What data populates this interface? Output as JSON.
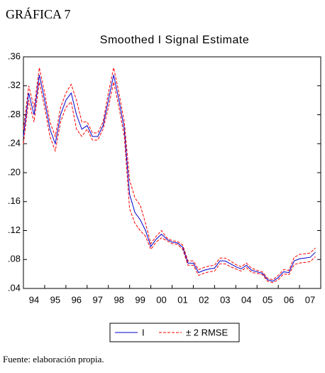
{
  "chart_data": {
    "type": "line",
    "header": "GRÁFICA 7",
    "title": "Smoothed I Signal Estimate",
    "footer": "Fuente: elaboración propia.",
    "x": [
      1994,
      1994.25,
      1994.5,
      1994.75,
      1995,
      1995.25,
      1995.5,
      1995.75,
      1996,
      1996.25,
      1996.5,
      1996.75,
      1997,
      1997.25,
      1997.5,
      1997.75,
      1998,
      1998.25,
      1998.5,
      1998.75,
      1999,
      1999.25,
      1999.5,
      1999.75,
      2000,
      2000.25,
      2000.5,
      2000.75,
      2001,
      2001.25,
      2001.5,
      2001.75,
      2002,
      2002.25,
      2002.5,
      2002.75,
      2003,
      2003.25,
      2003.5,
      2003.75,
      2004,
      2004.25,
      2004.5,
      2004.75,
      2005,
      2005.25,
      2005.5,
      2005.75,
      2006,
      2006.25,
      2006.5,
      2006.75,
      2007,
      2007.25,
      2007.5,
      2007.75
    ],
    "series": [
      {
        "name": "I",
        "color": "#0000cc",
        "values": [
          0.25,
          0.31,
          0.28,
          0.335,
          0.3,
          0.26,
          0.24,
          0.28,
          0.3,
          0.31,
          0.28,
          0.26,
          0.265,
          0.25,
          0.25,
          0.265,
          0.3,
          0.335,
          0.3,
          0.26,
          0.17,
          0.145,
          0.135,
          0.12,
          0.098,
          0.108,
          0.115,
          0.108,
          0.104,
          0.103,
          0.097,
          0.075,
          0.075,
          0.062,
          0.065,
          0.067,
          0.068,
          0.078,
          0.078,
          0.074,
          0.07,
          0.067,
          0.072,
          0.065,
          0.063,
          0.061,
          0.052,
          0.05,
          0.055,
          0.063,
          0.062,
          0.078,
          0.081,
          0.082,
          0.083,
          0.09
        ]
      },
      {
        "name": "± 2 RMSE",
        "color": "#ff0000",
        "dashed": true,
        "values": [
          0.26,
          0.32,
          0.29,
          0.345,
          0.31,
          0.27,
          0.25,
          0.29,
          0.31,
          0.322,
          0.3,
          0.27,
          0.27,
          0.255,
          0.255,
          0.27,
          0.31,
          0.345,
          0.31,
          0.27,
          0.19,
          0.165,
          0.155,
          0.13,
          0.102,
          0.112,
          0.12,
          0.11,
          0.106,
          0.105,
          0.1,
          0.078,
          0.078,
          0.066,
          0.069,
          0.071,
          0.072,
          0.082,
          0.082,
          0.078,
          0.073,
          0.07,
          0.075,
          0.068,
          0.065,
          0.063,
          0.054,
          0.052,
          0.058,
          0.066,
          0.065,
          0.083,
          0.087,
          0.088,
          0.089,
          0.096
        ],
        "lower": [
          0.24,
          0.3,
          0.27,
          0.325,
          0.29,
          0.25,
          0.23,
          0.27,
          0.29,
          0.298,
          0.26,
          0.25,
          0.26,
          0.245,
          0.245,
          0.26,
          0.29,
          0.325,
          0.29,
          0.25,
          0.15,
          0.13,
          0.12,
          0.112,
          0.094,
          0.104,
          0.11,
          0.106,
          0.102,
          0.101,
          0.094,
          0.072,
          0.072,
          0.058,
          0.061,
          0.063,
          0.064,
          0.074,
          0.074,
          0.07,
          0.067,
          0.064,
          0.069,
          0.062,
          0.061,
          0.059,
          0.05,
          0.048,
          0.052,
          0.06,
          0.059,
          0.073,
          0.075,
          0.076,
          0.077,
          0.084
        ]
      }
    ],
    "xlim": [
      1994,
      2008
    ],
    "xticks": [
      {
        "value": 1994,
        "label": "94"
      },
      {
        "value": 1995,
        "label": "95"
      },
      {
        "value": 1996,
        "label": "96"
      },
      {
        "value": 1997,
        "label": "97"
      },
      {
        "value": 1998,
        "label": "98"
      },
      {
        "value": 1999,
        "label": "99"
      },
      {
        "value": 2000,
        "label": "00"
      },
      {
        "value": 2001,
        "label": "01"
      },
      {
        "value": 2002,
        "label": "02"
      },
      {
        "value": 2003,
        "label": "03"
      },
      {
        "value": 2004,
        "label": "04"
      },
      {
        "value": 2005,
        "label": "05"
      },
      {
        "value": 2006,
        "label": "06"
      },
      {
        "value": 2007,
        "label": "07"
      }
    ],
    "ylim": [
      0.04,
      0.36
    ],
    "yticks": [
      {
        "value": 0.04,
        "label": ".04"
      },
      {
        "value": 0.08,
        "label": ".08"
      },
      {
        "value": 0.12,
        "label": ".12"
      },
      {
        "value": 0.16,
        "label": ".16"
      },
      {
        "value": 0.2,
        "label": ".20"
      },
      {
        "value": 0.24,
        "label": ".24"
      },
      {
        "value": 0.28,
        "label": ".28"
      },
      {
        "value": 0.32,
        "label": ".32"
      },
      {
        "value": 0.36,
        "label": ".36"
      }
    ],
    "legend": "bottom"
  }
}
